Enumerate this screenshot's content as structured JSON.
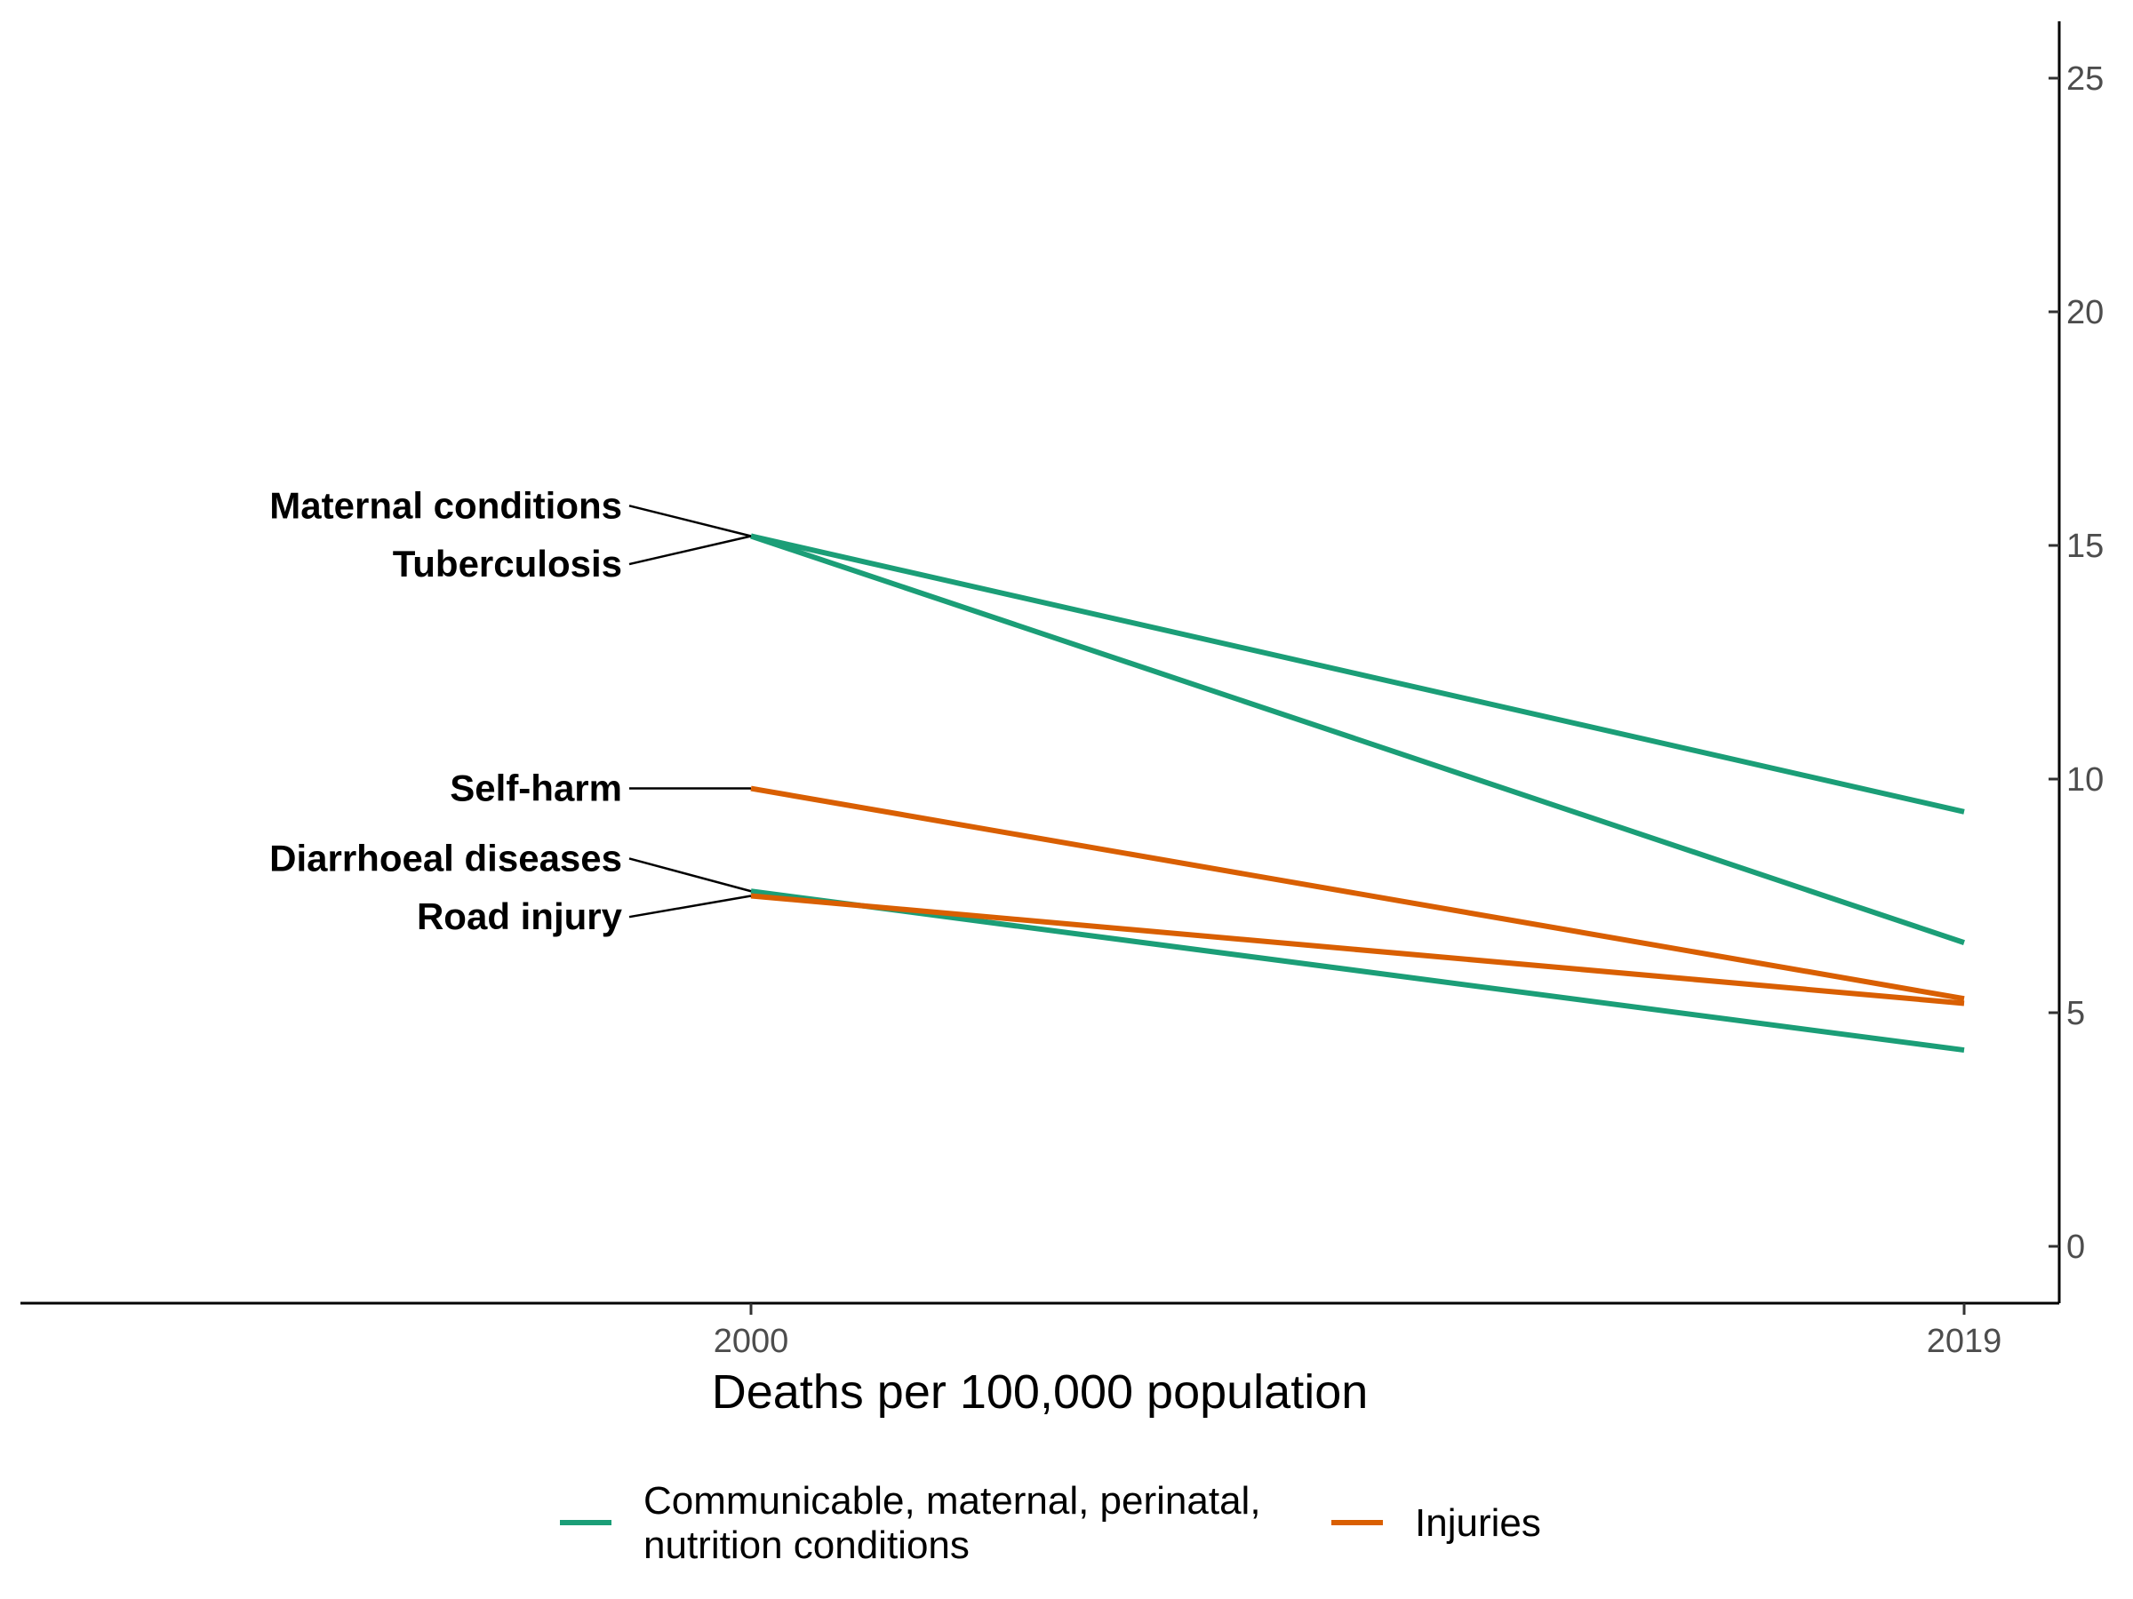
{
  "chart_data": {
    "type": "line",
    "xlabel": "Deaths per 100,000 population",
    "ylabel": "",
    "x": [
      "2000",
      "2019"
    ],
    "ylim": [
      -0.5,
      26
    ],
    "yticks": [
      0,
      5,
      10,
      15,
      20,
      25
    ],
    "ytick_labels": [
      "0",
      "5",
      "10",
      "15",
      "20",
      "25"
    ],
    "y_axis_position": "right",
    "grid": false,
    "legend_position": "bottom",
    "groups": [
      {
        "name": "Communicable, maternal, perinatal, nutrition conditions",
        "color": "#1b9e77"
      },
      {
        "name": "Injuries",
        "color": "#d95f02"
      }
    ],
    "legend_lines": [
      [
        "Communicable, maternal, perinatal,",
        "nutrition conditions"
      ],
      [
        "Injuries"
      ]
    ],
    "series": [
      {
        "name": "Maternal conditions",
        "group": 0,
        "values": [
          15.2,
          9.3
        ]
      },
      {
        "name": "Tuberculosis",
        "group": 0,
        "values": [
          15.2,
          6.5
        ]
      },
      {
        "name": "Self-harm",
        "group": 1,
        "values": [
          9.8,
          5.3
        ]
      },
      {
        "name": "Diarrhoeal diseases",
        "group": 0,
        "values": [
          7.6,
          4.2
        ]
      },
      {
        "name": "Road injury",
        "group": 1,
        "values": [
          7.5,
          5.2
        ]
      }
    ]
  }
}
